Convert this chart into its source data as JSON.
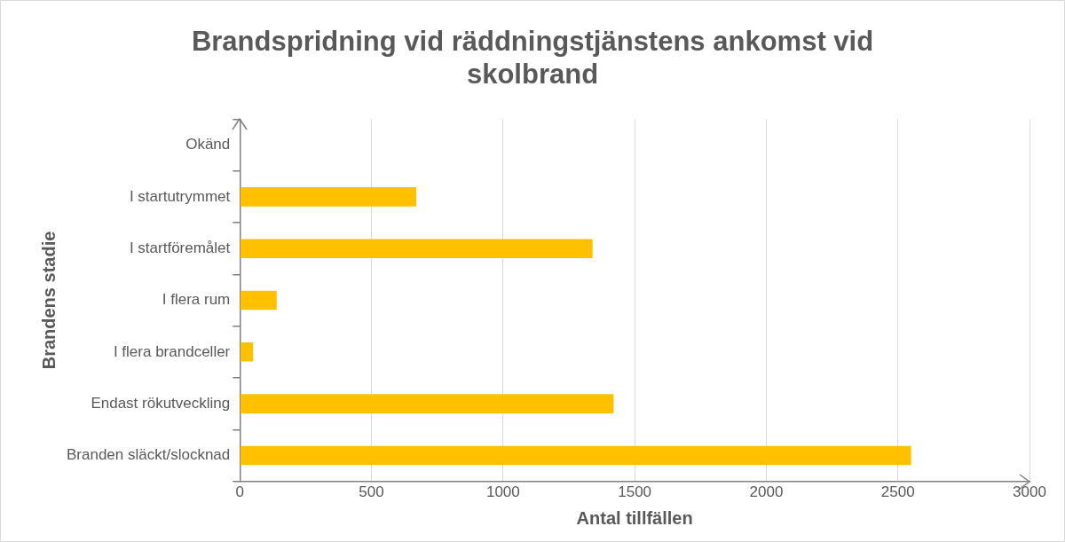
{
  "chart_data": {
    "type": "bar",
    "orientation": "horizontal",
    "title": "Brandspridning vid räddningstjänstens ankomst vid skolbrand",
    "categories": [
      "Okänd",
      "I startutrymmet",
      "I startföremålet",
      "I flera rum",
      "I flera brandceller",
      "Endast rökutveckling",
      "Branden släckt/slocknad"
    ],
    "values": [
      0,
      670,
      1340,
      140,
      50,
      1420,
      2550
    ],
    "color": "#ffc000",
    "xlim": [
      0,
      3000
    ],
    "xticks": [
      0,
      500,
      1000,
      1500,
      2000,
      2500,
      3000
    ],
    "xlabel": "Antal tillfällen",
    "ylabel": "Brandens stadie",
    "grid": "x",
    "legend": false
  }
}
